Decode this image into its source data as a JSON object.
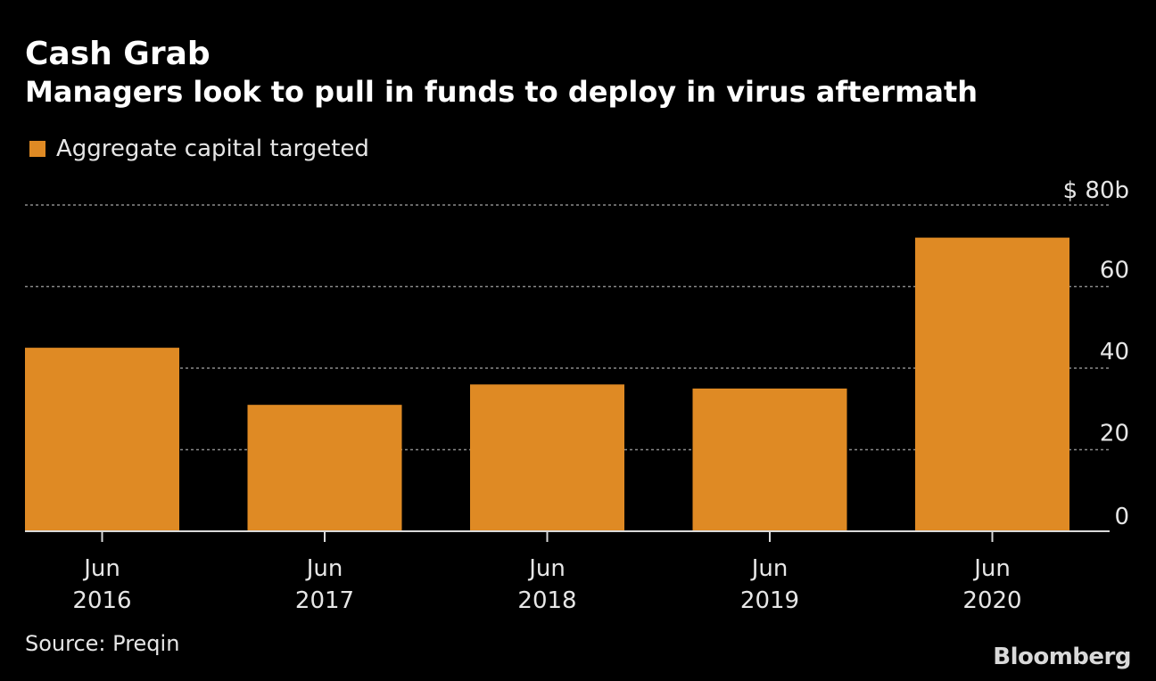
{
  "header": {
    "title": "Cash Grab",
    "subtitle": "Managers look to pull in funds to deploy in virus aftermath"
  },
  "footer": {
    "source": "Source: Preqin",
    "logo_text": "Bloomberg"
  },
  "colors": {
    "bar": "#DF8A24",
    "background": "#000000",
    "grid": "#8a8a8a",
    "text": "#e6e6e6"
  },
  "chart_data": {
    "type": "bar",
    "categories": [
      [
        "Jun",
        "2016"
      ],
      [
        "Jun",
        "2017"
      ],
      [
        "Jun",
        "2018"
      ],
      [
        "Jun",
        "2019"
      ],
      [
        "Jun",
        "2020"
      ]
    ],
    "series": [
      {
        "name": "Aggregate capital targeted",
        "values": [
          45,
          31,
          36,
          35,
          72
        ]
      }
    ],
    "ylim": [
      0,
      80
    ],
    "yticks": [
      0,
      20,
      40,
      60,
      80
    ],
    "ytick_labels": [
      "0",
      "20",
      "40",
      "60",
      "$ 80b"
    ],
    "grid": true,
    "legend_position": "top-left",
    "y_axis_side": "right"
  }
}
